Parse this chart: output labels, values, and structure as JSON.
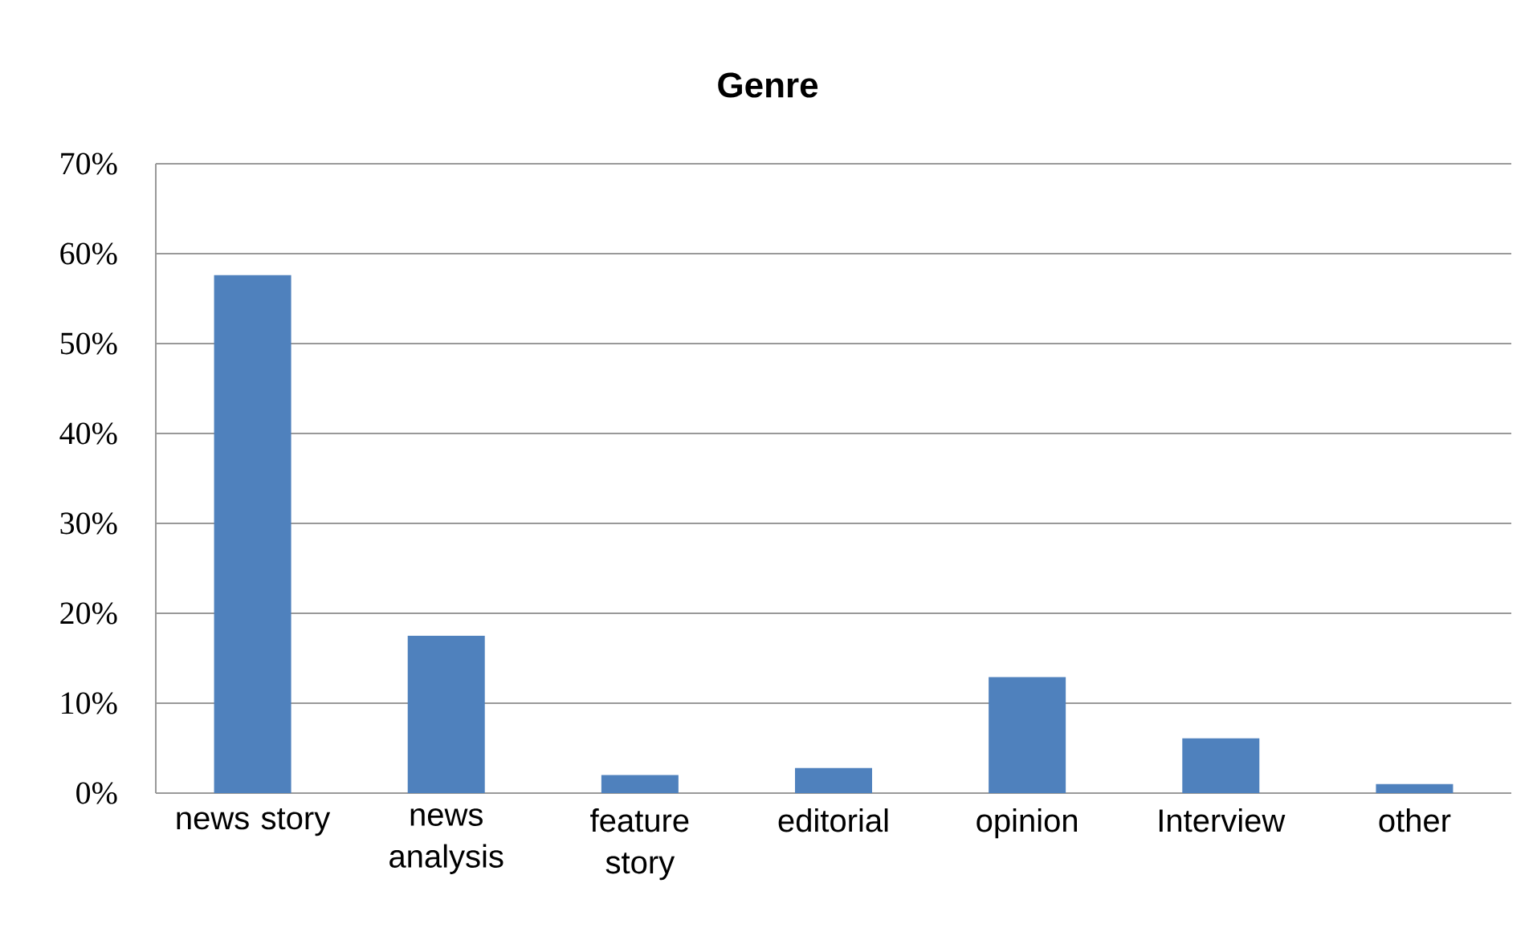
{
  "chart_data": {
    "type": "bar",
    "title": "Genre",
    "categories": [
      "news story",
      "news analysis",
      "feature story",
      "editorial",
      "opinion",
      "Interview",
      "other"
    ],
    "values": [
      57.6,
      17.5,
      2.0,
      2.8,
      12.9,
      6.1,
      1.0
    ],
    "color": "#4f81bd",
    "ylim": [
      0,
      70
    ],
    "yticks": [
      {
        "value": 0,
        "label": "0%"
      },
      {
        "value": 10,
        "label": "10%"
      },
      {
        "value": 20,
        "label": "20%"
      },
      {
        "value": 30,
        "label": "30%"
      },
      {
        "value": 40,
        "label": "40%"
      },
      {
        "value": 50,
        "label": "50%"
      },
      {
        "value": 60,
        "label": "60%"
      },
      {
        "value": 70,
        "label": "70%"
      }
    ],
    "grid": "y"
  }
}
